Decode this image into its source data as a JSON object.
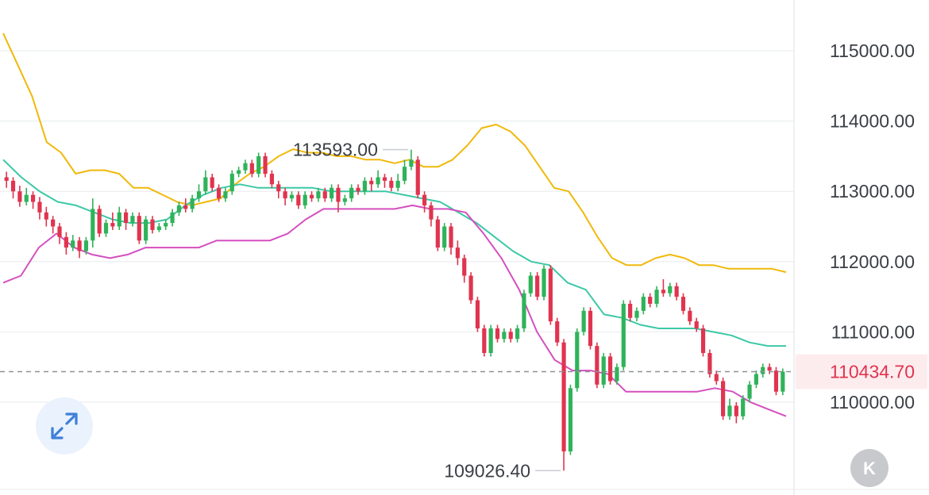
{
  "chart_data": {
    "type": "candlestick",
    "y_ticks": [
      "115000.00",
      "114000.00",
      "113000.00",
      "112000.00",
      "111000.00",
      "110000.00"
    ],
    "ylim": [
      109000,
      115300
    ],
    "current_price": "110434.70",
    "high_annotation": "113593.00",
    "low_annotation": "109026.40",
    "colors": {
      "up": "#2fb35a",
      "down": "#e0344f",
      "upper_band": "#f0b90b",
      "middle_band": "#3cc8a6",
      "lower_band": "#d54fbf"
    },
    "candles": [
      [
        113200,
        113150,
        113280,
        113050
      ],
      [
        113150,
        113000,
        113200,
        112900
      ],
      [
        113000,
        112850,
        113080,
        112780
      ],
      [
        112850,
        112950,
        113050,
        112800
      ],
      [
        112950,
        112850,
        113000,
        112750
      ],
      [
        112850,
        112700,
        112920,
        112600
      ],
      [
        112700,
        112600,
        112780,
        112500
      ],
      [
        112600,
        112500,
        112650,
        112400
      ],
      [
        112500,
        112350,
        112550,
        112250
      ],
      [
        112350,
        112200,
        112420,
        112100
      ],
      [
        112200,
        112300,
        112380,
        112150
      ],
      [
        112300,
        112150,
        112350,
        112050
      ],
      [
        112150,
        112300,
        112350,
        112100
      ],
      [
        112300,
        112750,
        112900,
        112200
      ],
      [
        112750,
        112400,
        112800,
        112350
      ],
      [
        112400,
        112550,
        112600,
        112350
      ],
      [
        112550,
        112500,
        112700,
        112450
      ],
      [
        112500,
        112700,
        112780,
        112450
      ],
      [
        112700,
        112550,
        112750,
        112450
      ],
      [
        112550,
        112650,
        112700,
        112500
      ],
      [
        112650,
        112300,
        112700,
        112250
      ],
      [
        112300,
        112600,
        112650,
        112250
      ],
      [
        112600,
        112450,
        112650,
        112400
      ],
      [
        112450,
        112500,
        112550,
        112420
      ],
      [
        112500,
        112550,
        112600,
        112450
      ],
      [
        112550,
        112700,
        112750,
        112500
      ],
      [
        112700,
        112800,
        112850,
        112650
      ],
      [
        112800,
        112750,
        112900,
        112700
      ],
      [
        112750,
        112900,
        112950,
        112700
      ],
      [
        112900,
        113000,
        113100,
        112850
      ],
      [
        113000,
        113200,
        113300,
        112950
      ],
      [
        113200,
        113050,
        113250,
        113000
      ],
      [
        113050,
        112900,
        113100,
        112850
      ],
      [
        112900,
        113000,
        113050,
        112850
      ],
      [
        113000,
        113250,
        113300,
        112950
      ],
      [
        113250,
        113300,
        113350,
        113200
      ],
      [
        113300,
        113400,
        113450,
        113250
      ],
      [
        113400,
        113250,
        113450,
        113200
      ],
      [
        113250,
        113500,
        113550,
        113200
      ],
      [
        113500,
        113250,
        113550,
        113200
      ],
      [
        113250,
        113100,
        113300,
        113050
      ],
      [
        113100,
        113000,
        113150,
        112900
      ],
      [
        113000,
        112900,
        113050,
        112800
      ],
      [
        112900,
        112950,
        113000,
        112850
      ],
      [
        112950,
        112800,
        113000,
        112750
      ],
      [
        112800,
        112950,
        113000,
        112750
      ],
      [
        112950,
        112900,
        113000,
        112850
      ],
      [
        112900,
        113000,
        113050,
        112850
      ],
      [
        113000,
        112900,
        113050,
        112850
      ],
      [
        112900,
        113050,
        113100,
        112850
      ],
      [
        113050,
        112850,
        113100,
        112700
      ],
      [
        112850,
        112900,
        112950,
        112800
      ],
      [
        112900,
        113050,
        113100,
        112850
      ],
      [
        113050,
        113000,
        113100,
        112950
      ],
      [
        113000,
        113150,
        113200,
        112950
      ],
      [
        113150,
        113100,
        113200,
        113000
      ],
      [
        113100,
        113200,
        113300,
        113050
      ],
      [
        113200,
        113150,
        113250,
        113050
      ],
      [
        113150,
        113050,
        113200,
        113000
      ],
      [
        113050,
        113150,
        113250,
        113000
      ],
      [
        113150,
        113350,
        113450,
        113100
      ],
      [
        113350,
        113450,
        113593,
        113300
      ],
      [
        113450,
        112950,
        113500,
        112900
      ],
      [
        112950,
        112800,
        113000,
        112700
      ],
      [
        112800,
        112600,
        112850,
        112500
      ],
      [
        112600,
        112200,
        112650,
        112150
      ],
      [
        112200,
        112500,
        112550,
        112150
      ],
      [
        112500,
        112200,
        112550,
        112100
      ],
      [
        112200,
        112050,
        112300,
        111950
      ],
      [
        112050,
        111800,
        112100,
        111700
      ],
      [
        111800,
        111450,
        111850,
        111400
      ],
      [
        111450,
        111050,
        111500,
        111000
      ],
      [
        111050,
        110700,
        111100,
        110650
      ],
      [
        110700,
        111050,
        111100,
        110650
      ],
      [
        111050,
        110900,
        111100,
        110850
      ],
      [
        110900,
        111000,
        111050,
        110850
      ],
      [
        111000,
        110900,
        111050,
        110850
      ],
      [
        110900,
        111050,
        111100,
        110850
      ],
      [
        111050,
        111550,
        111600,
        111000
      ],
      [
        111550,
        111800,
        111850,
        111500
      ],
      [
        111800,
        111500,
        111850,
        111450
      ],
      [
        111500,
        111900,
        111950,
        111450
      ],
      [
        111900,
        111150,
        111950,
        111100
      ],
      [
        111150,
        110850,
        111200,
        110800
      ],
      [
        110850,
        109300,
        110900,
        109026
      ],
      [
        109300,
        110200,
        110250,
        109250
      ],
      [
        110200,
        111000,
        111050,
        110150
      ],
      [
        111000,
        111300,
        111350,
        110950
      ],
      [
        111300,
        110800,
        111350,
        110750
      ],
      [
        110800,
        110250,
        110850,
        110200
      ],
      [
        110250,
        110650,
        110700,
        110200
      ],
      [
        110650,
        110300,
        110700,
        110250
      ],
      [
        110300,
        110500,
        110550,
        110250
      ],
      [
        110500,
        111400,
        111450,
        110450
      ],
      [
        111400,
        111200,
        111450,
        111150
      ],
      [
        111200,
        111300,
        111350,
        111150
      ],
      [
        111300,
        111500,
        111550,
        111250
      ],
      [
        111500,
        111400,
        111550,
        111350
      ],
      [
        111400,
        111600,
        111650,
        111350
      ],
      [
        111600,
        111550,
        111750,
        111500
      ],
      [
        111550,
        111650,
        111700,
        111500
      ],
      [
        111650,
        111500,
        111700,
        111450
      ],
      [
        111500,
        111300,
        111550,
        111250
      ],
      [
        111300,
        111150,
        111350,
        111100
      ],
      [
        111150,
        111050,
        111200,
        111000
      ],
      [
        111050,
        110700,
        111100,
        110650
      ],
      [
        110700,
        110400,
        110750,
        110350
      ],
      [
        110400,
        110300,
        110450,
        110250
      ],
      [
        110300,
        109800,
        110350,
        109750
      ],
      [
        109800,
        109950,
        110050,
        109750
      ],
      [
        109950,
        109800,
        110000,
        109700
      ],
      [
        109800,
        110050,
        110100,
        109750
      ],
      [
        110050,
        110250,
        110300,
        110000
      ],
      [
        110250,
        110400,
        110450,
        110200
      ],
      [
        110400,
        110500,
        110550,
        110350
      ],
      [
        110500,
        110450,
        110550,
        110400
      ],
      [
        110450,
        110150,
        110500,
        110100
      ],
      [
        110150,
        110434.7,
        110480,
        110100
      ]
    ],
    "upper_band": [
      115250,
      114800,
      114350,
      113700,
      113550,
      113250,
      113300,
      113300,
      113250,
      113050,
      113050,
      112950,
      112850,
      112800,
      112850,
      112900,
      113100,
      113250,
      113350,
      113500,
      113600,
      113550,
      113550,
      113500,
      113500,
      113450,
      113450,
      113400,
      113450,
      113350,
      113350,
      113450,
      113650,
      113900,
      113950,
      113850,
      113650,
      113350,
      113050,
      113000,
      112700,
      112350,
      112050,
      111950,
      111950,
      112050,
      112100,
      112050,
      111950,
      111950,
      111900,
      111900,
      111900,
      111900,
      111850
    ],
    "middle_band": [
      113450,
      113200,
      113000,
      112850,
      112800,
      112700,
      112600,
      112550,
      112550,
      112600,
      112800,
      112950,
      113050,
      113100,
      113050,
      113050,
      113050,
      113050,
      113000,
      113000,
      113000,
      113000,
      112950,
      112900,
      112850,
      112700,
      112550,
      112350,
      112150,
      112000,
      111950,
      111700,
      111600,
      111250,
      111200,
      111100,
      111050,
      111050,
      111050,
      111000,
      110950,
      110850,
      110800,
      110800
    ],
    "lower_band": [
      111700,
      111800,
      112200,
      112400,
      112200,
      112100,
      112050,
      112100,
      112200,
      112200,
      112200,
      112200,
      112300,
      112300,
      112300,
      112300,
      112400,
      112600,
      112750,
      112750,
      112750,
      112750,
      112750,
      112800,
      112750,
      112750,
      112700,
      112400,
      112050,
      111600,
      111000,
      110600,
      110450,
      110450,
      110400,
      110150,
      110150,
      110150,
      110150,
      110150,
      110200,
      110150,
      110000,
      109900,
      109800
    ]
  },
  "ui": {
    "expand_icon": "expand-arrows-icon",
    "kline_icon": "k-icon",
    "kline_label": "K"
  }
}
